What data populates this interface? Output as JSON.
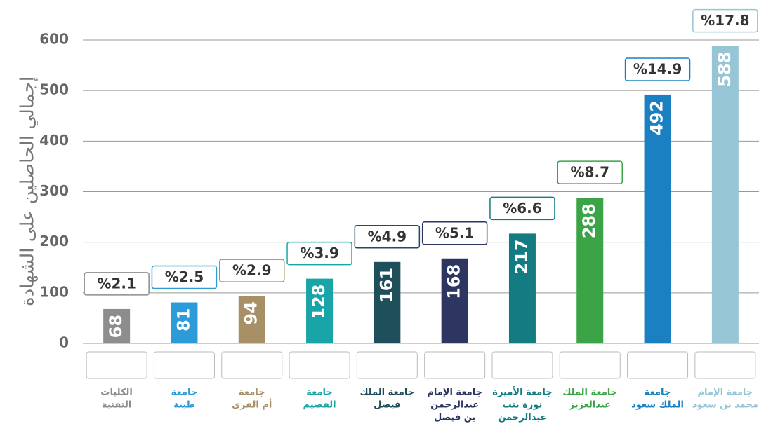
{
  "chart_data": {
    "type": "bar",
    "y_label": "إجمالي الحاصلين على الشهادة",
    "categories": [
      [
        "الكليات",
        "التقنية"
      ],
      [
        "جامعة",
        "طيبة"
      ],
      [
        "جامعة",
        "أم القرى"
      ],
      [
        "جامعة",
        "القصيم"
      ],
      [
        "جامعة الملك",
        "فيصل"
      ],
      [
        "جامعة الإمام",
        "عبدالرحمن",
        "بن فيصل"
      ],
      [
        "جامعة الأميرة",
        "نورة بنت",
        "عبدالرحمن"
      ],
      [
        "جامعة الملك",
        "عبدالعزيز"
      ],
      [
        "جامعة",
        "الملك سعود"
      ],
      [
        "جامعة الإمام",
        "محمد بن سعود"
      ]
    ],
    "values": [
      68,
      81,
      94,
      128,
      161,
      168,
      217,
      288,
      492,
      588
    ],
    "shares": [
      2.1,
      2.5,
      2.9,
      3.9,
      4.9,
      5.1,
      6.6,
      8.7,
      14.9,
      17.8
    ],
    "share_labels": [
      "%2.1",
      "%2.5",
      "%2.9",
      "%3.9",
      "%4.9",
      "%5.1",
      "%6.6",
      "%8.7",
      "%14.9",
      "%17.8"
    ],
    "colors": [
      "#8d8d8d",
      "#2d9bd7",
      "#a78f66",
      "#19a5a8",
      "#1f4f5b",
      "#2c3661",
      "#137b82",
      "#3aa447",
      "#1b80c1",
      "#96c6d5"
    ],
    "ylim": [
      0,
      600
    ],
    "yticks": [
      0,
      100,
      200,
      300,
      400,
      500,
      600
    ],
    "grid": true
  }
}
